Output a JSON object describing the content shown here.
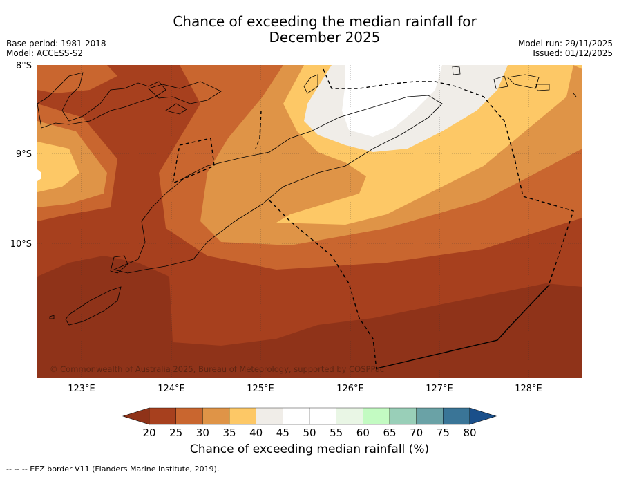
{
  "title_line1": "Chance of exceeding the median rainfall for",
  "title_line2": "December 2025",
  "base_period": "Base period: 1981-2018",
  "model": "Model: ACCESS-S2",
  "model_run": "Model run: 29/11/2025",
  "issued": "Issued: 01/12/2025",
  "copyright": "© Commonwealth of Australia 2025, Bureau of Meteorology, supported by COSPPac",
  "latitudes": [
    "8°S",
    "9°S",
    "10°S"
  ],
  "longitudes": [
    "123°E",
    "124°E",
    "125°E",
    "126°E",
    "127°E",
    "128°E"
  ],
  "colorbar": {
    "label": "Chance of exceeding median rainfall (%)",
    "ticks": [
      "20",
      "25",
      "30",
      "35",
      "40",
      "45",
      "50",
      "55",
      "60",
      "65",
      "70",
      "75",
      "80"
    ],
    "colors": [
      "#8f3319",
      "#a7401e",
      "#c9662f",
      "#df9447",
      "#fdc866",
      "#f0ede8",
      "#ffffff",
      "#ffffff",
      "#e9f6e5",
      "#c3fbc2",
      "#99cfb8",
      "#6aa2a6",
      "#3a7597",
      "#1a4f8a"
    ]
  },
  "footer": "--  --  -- EEZ border V11 (Flanders Marine Institute, 2019)."
}
